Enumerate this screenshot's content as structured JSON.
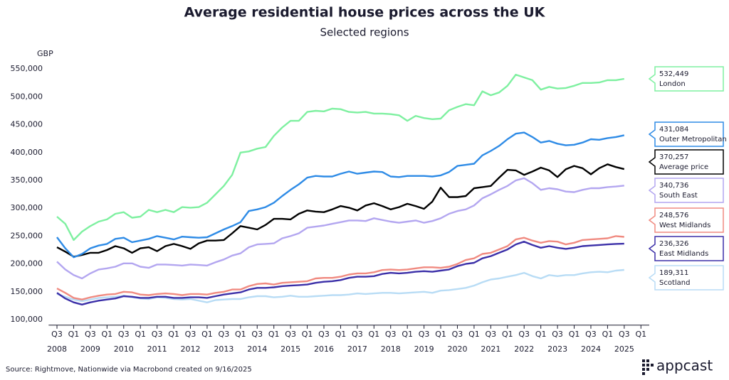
{
  "chart_data": {
    "type": "line",
    "title": "Average residential house prices across the UK",
    "subtitle": "Selected regions",
    "y_unit": "GBP",
    "source": "Source: Rightmove, Nationwide via Macrobond created on 9/16/2025",
    "logo": "appcast",
    "grid": false,
    "xlim": [
      2008.25,
      2026.25
    ],
    "ylim": [
      90000,
      560000
    ],
    "yticks": [
      {
        "value": 100000,
        "label": "100,000"
      },
      {
        "value": 150000,
        "label": "150,000"
      },
      {
        "value": 200000,
        "label": "200,000"
      },
      {
        "value": 250000,
        "label": "250,000"
      },
      {
        "value": 300000,
        "label": "300,000"
      },
      {
        "value": 350000,
        "label": "350,000"
      },
      {
        "value": 400000,
        "label": "400,000"
      },
      {
        "value": 450000,
        "label": "450,000"
      },
      {
        "value": 500000,
        "label": "500,000"
      },
      {
        "value": 550000,
        "label": "550,000"
      }
    ],
    "xticks": [
      {
        "value": 2008.5,
        "label": "Q3"
      },
      {
        "value": 2009,
        "label": "Q1"
      },
      {
        "value": 2009.5,
        "label": "Q3"
      },
      {
        "value": 2010,
        "label": "Q1"
      },
      {
        "value": 2010.5,
        "label": "Q3"
      },
      {
        "value": 2011,
        "label": "Q1"
      },
      {
        "value": 2011.5,
        "label": "Q3"
      },
      {
        "value": 2012,
        "label": "Q1"
      },
      {
        "value": 2012.5,
        "label": "Q3"
      },
      {
        "value": 2013,
        "label": "Q1"
      },
      {
        "value": 2013.5,
        "label": "Q3"
      },
      {
        "value": 2014,
        "label": "Q1"
      },
      {
        "value": 2014.5,
        "label": "Q3"
      },
      {
        "value": 2015,
        "label": "Q1"
      },
      {
        "value": 2015.5,
        "label": "Q3"
      },
      {
        "value": 2016,
        "label": "Q1"
      },
      {
        "value": 2016.5,
        "label": "Q3"
      },
      {
        "value": 2017,
        "label": "Q1"
      },
      {
        "value": 2017.5,
        "label": "Q3"
      },
      {
        "value": 2018,
        "label": "Q1"
      },
      {
        "value": 2018.5,
        "label": "Q3"
      },
      {
        "value": 2019,
        "label": "Q1"
      },
      {
        "value": 2019.5,
        "label": "Q3"
      },
      {
        "value": 2020,
        "label": "Q1"
      },
      {
        "value": 2020.5,
        "label": "Q3"
      },
      {
        "value": 2021,
        "label": "Q1"
      },
      {
        "value": 2021.5,
        "label": "Q3"
      },
      {
        "value": 2022,
        "label": "Q1"
      },
      {
        "value": 2022.5,
        "label": "Q3"
      },
      {
        "value": 2023,
        "label": "Q1"
      },
      {
        "value": 2023.5,
        "label": "Q3"
      },
      {
        "value": 2024,
        "label": "Q1"
      },
      {
        "value": 2024.5,
        "label": "Q3"
      },
      {
        "value": 2025,
        "label": "Q1"
      },
      {
        "value": 2025.5,
        "label": "Q3"
      },
      {
        "value": 2026,
        "label": "Q1"
      }
    ],
    "xyear_labels": [
      {
        "value": 2008.5,
        "label": "2008"
      },
      {
        "value": 2009.5,
        "label": "2009"
      },
      {
        "value": 2010.5,
        "label": "2010"
      },
      {
        "value": 2011.5,
        "label": "2011"
      },
      {
        "value": 2012.5,
        "label": "2012"
      },
      {
        "value": 2013.5,
        "label": "2013"
      },
      {
        "value": 2014.5,
        "label": "2014"
      },
      {
        "value": 2015.5,
        "label": "2015"
      },
      {
        "value": 2016.5,
        "label": "2016"
      },
      {
        "value": 2017.5,
        "label": "2017"
      },
      {
        "value": 2018.5,
        "label": "2018"
      },
      {
        "value": 2019.5,
        "label": "2019"
      },
      {
        "value": 2020.5,
        "label": "2020"
      },
      {
        "value": 2021.5,
        "label": "2021"
      },
      {
        "value": 2022.5,
        "label": "2022"
      },
      {
        "value": 2023.5,
        "label": "2023"
      },
      {
        "value": 2024.5,
        "label": "2024"
      },
      {
        "value": 2025.5,
        "label": "2025"
      }
    ],
    "x": [
      2008.5,
      2008.75,
      2009,
      2009.25,
      2009.5,
      2009.75,
      2010,
      2010.25,
      2010.5,
      2010.75,
      2011,
      2011.25,
      2011.5,
      2011.75,
      2012,
      2012.25,
      2012.5,
      2012.75,
      2013,
      2013.25,
      2013.5,
      2013.75,
      2014,
      2014.25,
      2014.5,
      2014.75,
      2015,
      2015.25,
      2015.5,
      2015.75,
      2016,
      2016.25,
      2016.5,
      2016.75,
      2017,
      2017.25,
      2017.5,
      2017.75,
      2018,
      2018.25,
      2018.5,
      2018.75,
      2019,
      2019.25,
      2019.5,
      2019.75,
      2020,
      2020.25,
      2020.5,
      2020.75,
      2021,
      2021.25,
      2021.5,
      2021.75,
      2022,
      2022.25,
      2022.5,
      2022.75,
      2023,
      2023.25,
      2023.5,
      2023.75,
      2024,
      2024.25,
      2024.5,
      2024.75,
      2025,
      2025.25,
      2025.5
    ],
    "series": [
      {
        "name": "London",
        "color": "#7ef0a0",
        "end_value_label": "532,449",
        "values": [
          285000,
          272000,
          243000,
          258000,
          268000,
          276000,
          280000,
          290000,
          293000,
          283000,
          285000,
          297000,
          293000,
          297000,
          293000,
          302000,
          301000,
          302000,
          310000,
          325000,
          340000,
          360000,
          400000,
          402000,
          407000,
          410000,
          430000,
          445000,
          457000,
          457000,
          473000,
          475000,
          474000,
          479000,
          478000,
          473000,
          472000,
          473000,
          470000,
          470000,
          469000,
          467000,
          457000,
          466000,
          462000,
          460000,
          461000,
          476000,
          482000,
          487000,
          485000,
          510000,
          503000,
          508000,
          520000,
          540000,
          535000,
          530000,
          513000,
          518000,
          515000,
          516000,
          520000,
          525000,
          525000,
          526000,
          530000,
          530000,
          532449
        ]
      },
      {
        "name": "Outer Metropolitan",
        "color": "#2e8be6",
        "end_value_label": "431,084",
        "values": [
          248000,
          228000,
          212000,
          218000,
          228000,
          233000,
          236000,
          245000,
          247000,
          239000,
          242000,
          245000,
          250000,
          247000,
          244000,
          249000,
          248000,
          247000,
          248000,
          255000,
          262000,
          268000,
          275000,
          295000,
          298000,
          302000,
          310000,
          322000,
          333000,
          343000,
          355000,
          358000,
          357000,
          357000,
          362000,
          366000,
          362000,
          364000,
          366000,
          365000,
          357000,
          356000,
          358000,
          358000,
          358000,
          357000,
          359000,
          365000,
          376000,
          378000,
          380000,
          395000,
          403000,
          412000,
          424000,
          434000,
          436000,
          428000,
          418000,
          421000,
          416000,
          413000,
          414000,
          418000,
          424000,
          423000,
          426000,
          428000,
          431084
        ]
      },
      {
        "name": "Average price",
        "color": "#000000",
        "end_value_label": "370,257",
        "values": [
          230000,
          222000,
          213000,
          216000,
          220000,
          220000,
          225000,
          232000,
          228000,
          220000,
          228000,
          230000,
          223000,
          232000,
          236000,
          232000,
          227000,
          237000,
          242000,
          242000,
          243000,
          255000,
          268000,
          265000,
          262000,
          270000,
          281000,
          281000,
          280000,
          290000,
          296000,
          294000,
          293000,
          298000,
          304000,
          301000,
          296000,
          305000,
          309000,
          304000,
          298000,
          302000,
          308000,
          304000,
          299000,
          312000,
          337000,
          320000,
          320000,
          322000,
          336000,
          338000,
          340000,
          355000,
          369000,
          368000,
          360000,
          366000,
          373000,
          368000,
          356000,
          370000,
          376000,
          372000,
          361000,
          372000,
          379000,
          374000,
          370257
        ]
      },
      {
        "name": "South East",
        "color": "#b3a6f0",
        "end_value_label": "340,736",
        "values": [
          204000,
          190000,
          180000,
          174000,
          183000,
          190000,
          192000,
          195000,
          201000,
          201000,
          195000,
          193000,
          199000,
          199000,
          198000,
          197000,
          199000,
          198000,
          197000,
          203000,
          208000,
          215000,
          219000,
          230000,
          235000,
          236000,
          237000,
          246000,
          250000,
          255000,
          265000,
          267000,
          269000,
          272000,
          275000,
          278000,
          278000,
          277000,
          282000,
          279000,
          276000,
          274000,
          276000,
          278000,
          274000,
          277000,
          282000,
          290000,
          295000,
          298000,
          305000,
          318000,
          325000,
          333000,
          340000,
          350000,
          354000,
          345000,
          333000,
          336000,
          334000,
          330000,
          329000,
          333000,
          336000,
          336000,
          338000,
          339000,
          340736
        ]
      },
      {
        "name": "West Midlands",
        "color": "#f08a80",
        "end_value_label": "248,576",
        "values": [
          156000,
          148000,
          139000,
          136000,
          140000,
          143000,
          145000,
          146000,
          150000,
          149000,
          145000,
          144000,
          146000,
          147000,
          146000,
          144000,
          146000,
          146000,
          145000,
          148000,
          150000,
          154000,
          154000,
          160000,
          164000,
          165000,
          163000,
          166000,
          167000,
          168000,
          169000,
          174000,
          175000,
          175000,
          177000,
          181000,
          183000,
          183000,
          185000,
          189000,
          190000,
          189000,
          190000,
          192000,
          194000,
          194000,
          193000,
          195000,
          200000,
          207000,
          210000,
          218000,
          220000,
          226000,
          232000,
          244000,
          247000,
          242000,
          238000,
          241000,
          240000,
          235000,
          238000,
          243000,
          244000,
          245000,
          246000,
          250000,
          248576
        ]
      },
      {
        "name": "East Midlands",
        "color": "#3b2fa8",
        "end_value_label": "236,326",
        "values": [
          148000,
          138000,
          131000,
          127000,
          131000,
          134000,
          136000,
          138000,
          142000,
          141000,
          139000,
          139000,
          141000,
          141000,
          139000,
          139000,
          140000,
          140000,
          139000,
          142000,
          145000,
          147000,
          149000,
          154000,
          157000,
          157000,
          158000,
          160000,
          161000,
          162000,
          163000,
          166000,
          168000,
          169000,
          171000,
          175000,
          177000,
          177000,
          178000,
          182000,
          184000,
          183000,
          184000,
          186000,
          187000,
          186000,
          188000,
          190000,
          196000,
          200000,
          202000,
          210000,
          214000,
          220000,
          226000,
          235000,
          240000,
          234000,
          229000,
          232000,
          229000,
          227000,
          229000,
          232000,
          233000,
          234000,
          235000,
          236000,
          236326
        ]
      },
      {
        "name": "Scotland",
        "color": "#b8dcf5",
        "end_value_label": "189,311",
        "values": [
          146000,
          141000,
          136000,
          133000,
          136000,
          139000,
          140000,
          141000,
          143000,
          140000,
          138000,
          137000,
          140000,
          139000,
          137000,
          136000,
          137000,
          134000,
          131000,
          135000,
          136000,
          137000,
          137000,
          140000,
          142000,
          142000,
          140000,
          141000,
          143000,
          141000,
          141000,
          142000,
          143000,
          144000,
          144000,
          145000,
          147000,
          146000,
          147000,
          148000,
          148000,
          147000,
          148000,
          149000,
          150000,
          148000,
          152000,
          153000,
          155000,
          157000,
          161000,
          167000,
          172000,
          174000,
          177000,
          180000,
          184000,
          178000,
          174000,
          180000,
          178000,
          180000,
          180000,
          183000,
          185000,
          186000,
          185000,
          188000,
          189311
        ]
      }
    ]
  }
}
